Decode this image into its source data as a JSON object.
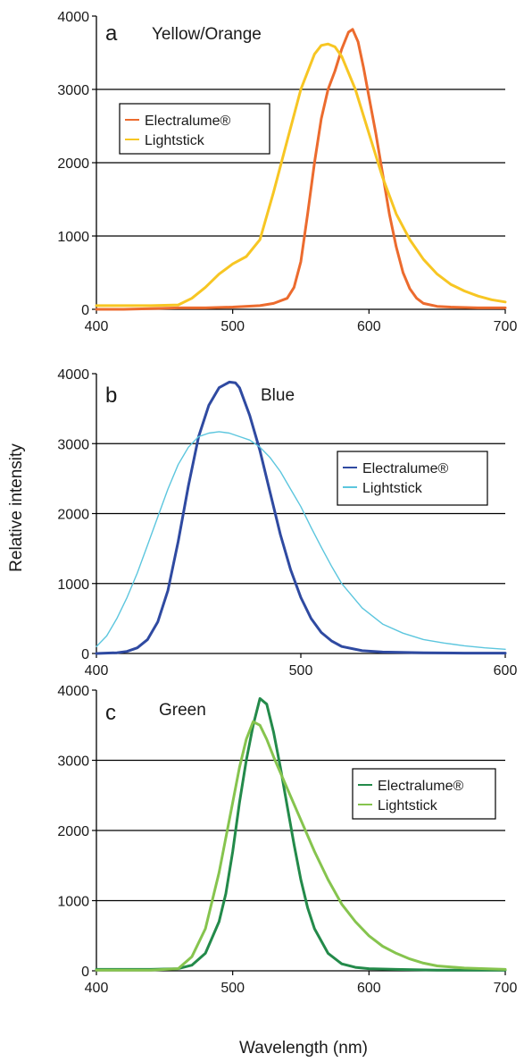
{
  "figure": {
    "ylabel": "Relative intensity",
    "xlabel": "Wavelength (nm)",
    "legend_labels": [
      "Electralume®",
      "Lightstick"
    ],
    "colors": {
      "a": {
        "Electralume®": "#ec6b2e",
        "Lightstick": "#f7c623"
      },
      "b": {
        "Electralume®": "#2f4aa1",
        "Lightstick": "#5cc6de"
      },
      "c": {
        "Electralume®": "#238a4a",
        "Lightstick": "#86c44e"
      }
    }
  },
  "chart_data": [
    {
      "type": "line",
      "panel": "a",
      "title": "Yellow/Orange",
      "xlim": [
        400,
        700
      ],
      "ylim": [
        0,
        4000
      ],
      "xticks": [
        400,
        500,
        600,
        700
      ],
      "yticks": [
        0,
        1000,
        2000,
        3000,
        4000
      ],
      "grid": "horizontal",
      "legend_position": "upper-left",
      "series": [
        {
          "name": "Electralume®",
          "x": [
            400,
            420,
            440,
            460,
            480,
            500,
            520,
            530,
            540,
            545,
            550,
            555,
            560,
            565,
            570,
            575,
            580,
            585,
            588,
            592,
            596,
            600,
            605,
            610,
            615,
            620,
            625,
            630,
            635,
            640,
            650,
            660,
            680,
            700
          ],
          "y": [
            0,
            0,
            10,
            20,
            20,
            30,
            50,
            80,
            150,
            300,
            650,
            1300,
            2000,
            2600,
            3000,
            3250,
            3550,
            3780,
            3820,
            3650,
            3300,
            2900,
            2400,
            1850,
            1300,
            850,
            500,
            280,
            150,
            80,
            40,
            30,
            20,
            20
          ]
        },
        {
          "name": "Lightstick",
          "x": [
            400,
            420,
            440,
            460,
            470,
            480,
            490,
            500,
            510,
            520,
            530,
            540,
            550,
            560,
            565,
            570,
            575,
            580,
            590,
            600,
            610,
            620,
            630,
            640,
            650,
            660,
            670,
            680,
            690,
            700
          ],
          "y": [
            50,
            50,
            50,
            60,
            150,
            300,
            480,
            620,
            720,
            950,
            1600,
            2300,
            3000,
            3480,
            3600,
            3620,
            3580,
            3450,
            3000,
            2400,
            1800,
            1300,
            950,
            680,
            480,
            340,
            250,
            180,
            130,
            100
          ]
        }
      ]
    },
    {
      "type": "line",
      "panel": "b",
      "title": "Blue",
      "xlim": [
        400,
        600
      ],
      "ylim": [
        0,
        4000
      ],
      "xticks": [
        400,
        500,
        600
      ],
      "yticks": [
        0,
        1000,
        2000,
        3000,
        4000
      ],
      "grid": "horizontal",
      "legend_position": "right",
      "series": [
        {
          "name": "Electralume®",
          "x": [
            400,
            410,
            415,
            420,
            425,
            430,
            435,
            440,
            445,
            450,
            455,
            460,
            465,
            468,
            470,
            475,
            480,
            485,
            490,
            495,
            500,
            505,
            510,
            515,
            520,
            530,
            540,
            560,
            580,
            600
          ],
          "y": [
            0,
            10,
            30,
            80,
            200,
            450,
            900,
            1600,
            2400,
            3100,
            3550,
            3800,
            3880,
            3870,
            3800,
            3400,
            2900,
            2300,
            1700,
            1200,
            800,
            500,
            300,
            180,
            100,
            40,
            20,
            10,
            5,
            5
          ]
        },
        {
          "name": "Lightstick",
          "x": [
            400,
            405,
            410,
            415,
            420,
            425,
            430,
            435,
            440,
            445,
            450,
            455,
            460,
            465,
            470,
            475,
            480,
            485,
            490,
            495,
            500,
            505,
            510,
            515,
            520,
            530,
            540,
            550,
            560,
            570,
            580,
            590,
            600
          ],
          "y": [
            100,
            250,
            500,
            800,
            1150,
            1550,
            1950,
            2350,
            2700,
            2950,
            3100,
            3150,
            3170,
            3150,
            3100,
            3050,
            2950,
            2800,
            2600,
            2350,
            2100,
            1800,
            1520,
            1250,
            1000,
            650,
            420,
            290,
            200,
            150,
            110,
            80,
            60
          ]
        }
      ]
    },
    {
      "type": "line",
      "panel": "c",
      "title": "Green",
      "xlim": [
        400,
        700
      ],
      "ylim": [
        0,
        4000
      ],
      "xticks": [
        400,
        500,
        600,
        700
      ],
      "yticks": [
        0,
        1000,
        2000,
        3000,
        4000
      ],
      "grid": "horizontal",
      "legend_position": "right",
      "series": [
        {
          "name": "Electralume®",
          "x": [
            400,
            440,
            460,
            470,
            480,
            490,
            495,
            500,
            505,
            510,
            515,
            520,
            525,
            530,
            535,
            540,
            545,
            550,
            555,
            560,
            570,
            580,
            590,
            600,
            620,
            650,
            700
          ],
          "y": [
            20,
            20,
            30,
            80,
            250,
            700,
            1100,
            1700,
            2400,
            3000,
            3500,
            3880,
            3800,
            3400,
            2900,
            2350,
            1800,
            1300,
            900,
            600,
            250,
            100,
            50,
            30,
            20,
            10,
            10
          ]
        },
        {
          "name": "Lightstick",
          "x": [
            400,
            440,
            460,
            470,
            480,
            490,
            500,
            505,
            510,
            515,
            520,
            525,
            530,
            540,
            550,
            560,
            570,
            580,
            590,
            600,
            610,
            620,
            630,
            640,
            650,
            670,
            700
          ],
          "y": [
            10,
            10,
            30,
            200,
            600,
            1400,
            2400,
            2900,
            3300,
            3550,
            3500,
            3300,
            3050,
            2600,
            2150,
            1700,
            1300,
            950,
            700,
            500,
            350,
            250,
            170,
            110,
            70,
            40,
            20
          ]
        }
      ]
    }
  ]
}
